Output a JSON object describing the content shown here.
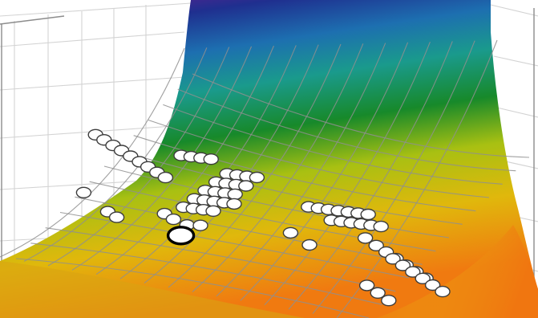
{
  "chart_data": {
    "type": "surface3d",
    "title": "",
    "xlabel": "",
    "ylabel": "",
    "zlabel": "",
    "colorscale": [
      "#7a1b8f",
      "#1f2f8f",
      "#1d6fb0",
      "#1a9a8c",
      "#17892a",
      "#a8c012",
      "#e0b80c",
      "#f07a10"
    ],
    "grid": true,
    "legend": "none",
    "points": [
      {
        "x": 0.14,
        "y": 0.28,
        "z": 0.55
      },
      {
        "x": 0.16,
        "y": 0.27,
        "z": 0.53
      },
      {
        "x": 0.18,
        "y": 0.27,
        "z": 0.51
      },
      {
        "x": 0.2,
        "y": 0.26,
        "z": 0.49
      },
      {
        "x": 0.22,
        "y": 0.26,
        "z": 0.47
      },
      {
        "x": 0.24,
        "y": 0.26,
        "z": 0.45
      },
      {
        "x": 0.26,
        "y": 0.25,
        "z": 0.43
      },
      {
        "x": 0.28,
        "y": 0.25,
        "z": 0.41
      },
      {
        "x": 0.3,
        "y": 0.24,
        "z": 0.39
      },
      {
        "x": 0.12,
        "y": 0.22,
        "z": 0.32
      },
      {
        "x": 0.18,
        "y": 0.16,
        "z": 0.24
      },
      {
        "x": 0.2,
        "y": 0.16,
        "z": 0.22
      },
      {
        "x": 0.32,
        "y": 0.38,
        "z": 0.5
      },
      {
        "x": 0.34,
        "y": 0.4,
        "z": 0.5
      },
      {
        "x": 0.36,
        "y": 0.42,
        "z": 0.5
      },
      {
        "x": 0.38,
        "y": 0.44,
        "z": 0.5
      },
      {
        "x": 0.42,
        "y": 0.4,
        "z": 0.44
      },
      {
        "x": 0.44,
        "y": 0.42,
        "z": 0.44
      },
      {
        "x": 0.46,
        "y": 0.44,
        "z": 0.44
      },
      {
        "x": 0.48,
        "y": 0.46,
        "z": 0.44
      },
      {
        "x": 0.4,
        "y": 0.36,
        "z": 0.4
      },
      {
        "x": 0.42,
        "y": 0.38,
        "z": 0.4
      },
      {
        "x": 0.44,
        "y": 0.4,
        "z": 0.4
      },
      {
        "x": 0.46,
        "y": 0.42,
        "z": 0.4
      },
      {
        "x": 0.38,
        "y": 0.32,
        "z": 0.36
      },
      {
        "x": 0.4,
        "y": 0.34,
        "z": 0.36
      },
      {
        "x": 0.42,
        "y": 0.36,
        "z": 0.36
      },
      {
        "x": 0.44,
        "y": 0.38,
        "z": 0.36
      },
      {
        "x": 0.36,
        "y": 0.28,
        "z": 0.32
      },
      {
        "x": 0.38,
        "y": 0.3,
        "z": 0.32
      },
      {
        "x": 0.4,
        "y": 0.32,
        "z": 0.32
      },
      {
        "x": 0.42,
        "y": 0.34,
        "z": 0.32
      },
      {
        "x": 0.44,
        "y": 0.36,
        "z": 0.32
      },
      {
        "x": 0.34,
        "y": 0.24,
        "z": 0.28
      },
      {
        "x": 0.36,
        "y": 0.26,
        "z": 0.28
      },
      {
        "x": 0.38,
        "y": 0.28,
        "z": 0.28
      },
      {
        "x": 0.4,
        "y": 0.3,
        "z": 0.28
      },
      {
        "x": 0.3,
        "y": 0.22,
        "z": 0.25
      },
      {
        "x": 0.32,
        "y": 0.22,
        "z": 0.23
      },
      {
        "x": 0.35,
        "y": 0.22,
        "z": 0.21
      },
      {
        "x": 0.38,
        "y": 0.22,
        "z": 0.21
      },
      {
        "x": 0.58,
        "y": 0.6,
        "z": 0.36
      },
      {
        "x": 0.6,
        "y": 0.62,
        "z": 0.36
      },
      {
        "x": 0.62,
        "y": 0.64,
        "z": 0.36
      },
      {
        "x": 0.64,
        "y": 0.66,
        "z": 0.36
      },
      {
        "x": 0.66,
        "y": 0.68,
        "z": 0.36
      },
      {
        "x": 0.68,
        "y": 0.7,
        "z": 0.36
      },
      {
        "x": 0.7,
        "y": 0.72,
        "z": 0.36
      },
      {
        "x": 0.62,
        "y": 0.7,
        "z": 0.33
      },
      {
        "x": 0.64,
        "y": 0.72,
        "z": 0.33
      },
      {
        "x": 0.66,
        "y": 0.74,
        "z": 0.33
      },
      {
        "x": 0.68,
        "y": 0.76,
        "z": 0.33
      },
      {
        "x": 0.7,
        "y": 0.78,
        "z": 0.33
      },
      {
        "x": 0.72,
        "y": 0.8,
        "z": 0.33
      },
      {
        "x": 0.54,
        "y": 0.6,
        "z": 0.26
      },
      {
        "x": 0.58,
        "y": 0.62,
        "z": 0.22
      },
      {
        "x": 0.7,
        "y": 0.66,
        "z": 0.26
      },
      {
        "x": 0.72,
        "y": 0.7,
        "z": 0.24
      },
      {
        "x": 0.74,
        "y": 0.72,
        "z": 0.22
      },
      {
        "x": 0.76,
        "y": 0.74,
        "z": 0.2
      },
      {
        "x": 0.78,
        "y": 0.76,
        "z": 0.18
      },
      {
        "x": 0.8,
        "y": 0.78,
        "z": 0.16
      },
      {
        "x": 0.82,
        "y": 0.8,
        "z": 0.14
      },
      {
        "x": 0.74,
        "y": 0.86,
        "z": 0.22
      },
      {
        "x": 0.76,
        "y": 0.88,
        "z": 0.2
      },
      {
        "x": 0.78,
        "y": 0.9,
        "z": 0.18
      },
      {
        "x": 0.8,
        "y": 0.92,
        "z": 0.16
      },
      {
        "x": 0.82,
        "y": 0.94,
        "z": 0.14
      },
      {
        "x": 0.84,
        "y": 0.96,
        "z": 0.12
      },
      {
        "x": 0.68,
        "y": 0.88,
        "z": 0.12
      },
      {
        "x": 0.7,
        "y": 0.92,
        "z": 0.1
      },
      {
        "x": 0.72,
        "y": 0.96,
        "z": 0.08
      }
    ],
    "highlighted_point": {
      "x": 0.33,
      "y": 0.28,
      "z": 0.18
    }
  }
}
